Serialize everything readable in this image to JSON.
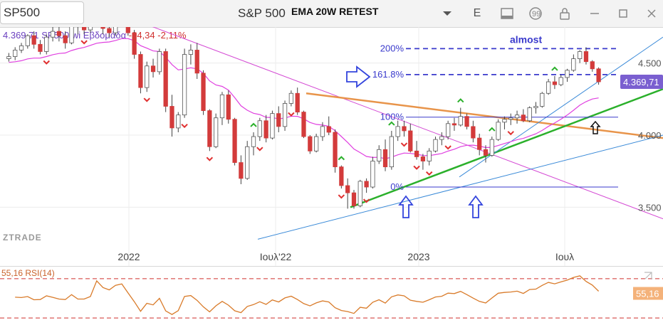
{
  "toolbar": {
    "symbol": "SP500",
    "title": "S&P 500",
    "annotation": "EMA 20W RETEST",
    "icons": [
      "dropdown-icon",
      "e-button",
      "layout-icon",
      "chat-icon",
      "lock-icon",
      "minimize-icon",
      "restore-icon",
      "close-icon"
    ],
    "e_label": "E"
  },
  "info": {
    "price": "4.369,71",
    "name": "SP500.wi",
    "period": "Εβδομάδα",
    "change": "-94,34",
    "change_pct": "-2,11%"
  },
  "watermark": "ZTRADE",
  "price_axis": {
    "labels": [
      "4.500",
      "4.000",
      "3.500"
    ],
    "current": "4.369,71"
  },
  "time_axis": {
    "labels": [
      "2022",
      "Ιουλ'22",
      "2023",
      "Ιουλ"
    ]
  },
  "fib": {
    "levels": [
      {
        "label": "200%",
        "value": 4600
      },
      {
        "label": "161.8%",
        "value": 4420
      },
      {
        "label": "100%",
        "value": 4125
      },
      {
        "label": "0%",
        "value": 3640
      }
    ],
    "almost": "almost"
  },
  "rsi": {
    "label": "55,16 RSI(14)",
    "value": "55,16"
  },
  "colors": {
    "up": "#ffffff",
    "down": "#d33b3b",
    "ema": "#e040e0",
    "fib": "#3a3acc",
    "trend_orange": "#e8944a",
    "trend_green": "#2bb02b",
    "trend_blue": "#3a8ad8",
    "rsi": "#d97b2a",
    "info": "#6a3fbf"
  },
  "chart_data": {
    "type": "candlestick",
    "ylim": [
      3280,
      4750
    ],
    "candles": [
      [
        4530,
        4570,
        4510,
        4545
      ],
      [
        4545,
        4610,
        4520,
        4590
      ],
      [
        4590,
        4640,
        4570,
        4620
      ],
      [
        4620,
        4700,
        4600,
        4690
      ],
      [
        4690,
        4720,
        4600,
        4630
      ],
      [
        4630,
        4660,
        4560,
        4580
      ],
      [
        4580,
        4700,
        4560,
        4680
      ],
      [
        4680,
        4760,
        4650,
        4720
      ],
      [
        4720,
        4760,
        4650,
        4690
      ],
      [
        4690,
        4720,
        4600,
        4640
      ],
      [
        4640,
        4820,
        4630,
        4790
      ],
      [
        4790,
        4810,
        4700,
        4760
      ],
      [
        4760,
        4790,
        4700,
        4730
      ],
      [
        4730,
        4830,
        4710,
        4800
      ],
      [
        4800,
        4850,
        4760,
        4820
      ],
      [
        4820,
        4830,
        4700,
        4740
      ],
      [
        4740,
        4800,
        4680,
        4710
      ],
      [
        4710,
        4830,
        4690,
        4800
      ],
      [
        4800,
        4860,
        4760,
        4830
      ],
      [
        4830,
        4850,
        4690,
        4710
      ],
      [
        4710,
        4730,
        4530,
        4560
      ],
      [
        4560,
        4580,
        4290,
        4330
      ],
      [
        4330,
        4510,
        4300,
        4480
      ],
      [
        4480,
        4530,
        4400,
        4440
      ],
      [
        4440,
        4600,
        4420,
        4580
      ],
      [
        4580,
        4600,
        4160,
        4200
      ],
      [
        4200,
        4280,
        3990,
        4050
      ],
      [
        4050,
        4160,
        4020,
        4140
      ],
      [
        4140,
        4600,
        4120,
        4560
      ],
      [
        4560,
        4630,
        4490,
        4590
      ],
      [
        4590,
        4640,
        4390,
        4430
      ],
      [
        4430,
        4450,
        4140,
        4170
      ],
      [
        4170,
        4180,
        3890,
        3920
      ],
      [
        3920,
        4150,
        3910,
        4120
      ],
      [
        4120,
        4300,
        4070,
        4280
      ],
      [
        4280,
        4310,
        4080,
        4110
      ],
      [
        4110,
        4120,
        3790,
        3810
      ],
      [
        3810,
        3860,
        3660,
        3700
      ],
      [
        3700,
        3960,
        3690,
        3920
      ],
      [
        3920,
        4020,
        3860,
        3990
      ],
      [
        3990,
        4120,
        3960,
        4100
      ],
      [
        4100,
        4140,
        3950,
        3980
      ],
      [
        3980,
        4170,
        3970,
        4150
      ],
      [
        4150,
        4200,
        4020,
        4060
      ],
      [
        4060,
        4240,
        4030,
        4220
      ],
      [
        4220,
        4310,
        4200,
        4290
      ],
      [
        4290,
        4330,
        4140,
        4160
      ],
      [
        4160,
        4170,
        3980,
        3990
      ],
      [
        3990,
        4000,
        3870,
        3890
      ],
      [
        3890,
        4010,
        3880,
        3990
      ],
      [
        3990,
        4090,
        3960,
        4060
      ],
      [
        4060,
        4130,
        4000,
        4020
      ],
      [
        4020,
        4040,
        3740,
        3780
      ],
      [
        3780,
        3790,
        3630,
        3650
      ],
      [
        3650,
        3700,
        3490,
        3600
      ],
      [
        3600,
        3620,
        3490,
        3510
      ],
      [
        3510,
        3690,
        3500,
        3680
      ],
      [
        3680,
        3700,
        3600,
        3640
      ],
      [
        3640,
        3850,
        3630,
        3820
      ],
      [
        3820,
        3930,
        3800,
        3900
      ],
      [
        3900,
        3970,
        3750,
        3780
      ],
      [
        3780,
        4030,
        3760,
        3990
      ],
      [
        3990,
        4100,
        3960,
        4060
      ],
      [
        4060,
        4100,
        3990,
        4030
      ],
      [
        4030,
        4080,
        3880,
        3890
      ],
      [
        3890,
        3960,
        3830,
        3850
      ],
      [
        3850,
        3870,
        3760,
        3820
      ],
      [
        3820,
        3910,
        3790,
        3890
      ],
      [
        3890,
        3990,
        3880,
        3970
      ],
      [
        3970,
        4020,
        3930,
        3990
      ],
      [
        3990,
        4100,
        3970,
        4080
      ],
      [
        4080,
        4120,
        4030,
        4070
      ],
      [
        4070,
        4190,
        4060,
        4130
      ],
      [
        4130,
        4150,
        4040,
        4060
      ],
      [
        4060,
        4100,
        3950,
        3980
      ],
      [
        3980,
        4010,
        3860,
        3900
      ],
      [
        3900,
        3930,
        3810,
        3860
      ],
      [
        3860,
        3990,
        3850,
        3970
      ],
      [
        3970,
        4110,
        3960,
        4090
      ],
      [
        4090,
        4130,
        4040,
        4110
      ],
      [
        4110,
        4150,
        4070,
        4120
      ],
      [
        4120,
        4170,
        4080,
        4140
      ],
      [
        4140,
        4180,
        4090,
        4100
      ],
      [
        4100,
        4200,
        4090,
        4190
      ],
      [
        4190,
        4230,
        4150,
        4200
      ],
      [
        4200,
        4300,
        4190,
        4290
      ],
      [
        4290,
        4390,
        4280,
        4370
      ],
      [
        4370,
        4410,
        4320,
        4350
      ],
      [
        4350,
        4420,
        4340,
        4400
      ],
      [
        4400,
        4460,
        4370,
        4450
      ],
      [
        4450,
        4560,
        4440,
        4530
      ],
      [
        4530,
        4590,
        4500,
        4580
      ],
      [
        4580,
        4610,
        4490,
        4510
      ],
      [
        4510,
        4520,
        4440,
        4460
      ],
      [
        4460,
        4470,
        4350,
        4370
      ]
    ],
    "ema_ticks": "smooth 20-week EMA following price",
    "rsi_ylim": [
      25,
      80
    ],
    "rsi_levels": [
      70,
      30
    ]
  }
}
